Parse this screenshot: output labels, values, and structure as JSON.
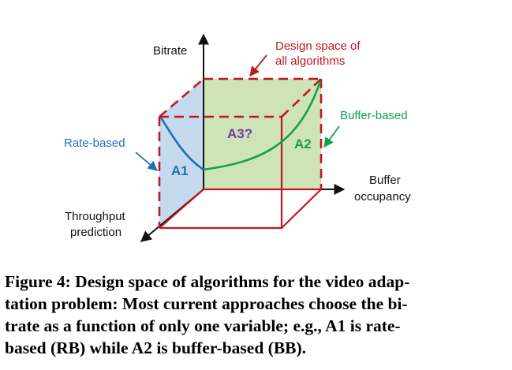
{
  "diagram": {
    "labels": {
      "bitrate": "Bitrate",
      "design_space_line1": "Design space of",
      "design_space_line2": "all algorithms",
      "buffer_based": "Buffer-based",
      "rate_based": "Rate-based",
      "buffer_occupancy_line1": "Buffer",
      "buffer_occupancy_line2": "occupancy",
      "throughput_line1": "Throughput",
      "throughput_line2": "prediction"
    },
    "regions": {
      "a1": "A1",
      "a2": "A2",
      "a3": "A3?"
    },
    "colors": {
      "cube_edge": "#c0181f",
      "rate_region": "#c5d9ef",
      "buffer_region": "#cfe3b9",
      "rate_curve": "#1f6fb4",
      "buffer_curve": "#12a04a",
      "a3_label": "#6b3fa0"
    }
  },
  "caption": {
    "lines": [
      "Figure 4: Design space of algorithms for the video adap-",
      "tation problem: Most current approaches choose the bi-",
      "trate as a function of only one variable; e.g., A1 is rate-",
      "based (RB) while A2 is buffer-based (BB)."
    ]
  }
}
